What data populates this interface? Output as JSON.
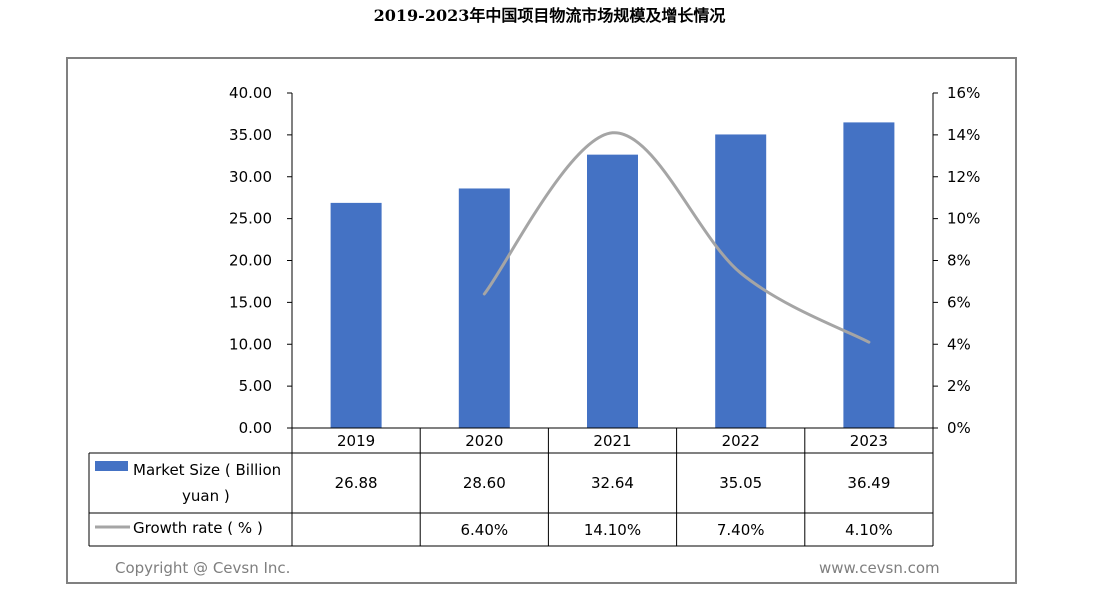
{
  "chart_data": {
    "type": "bar",
    "title": "2019-2023年中国项目物流市场规模及增长情况",
    "categories": [
      "2019",
      "2020",
      "2021",
      "2022",
      "2023"
    ],
    "series": [
      {
        "name": "Market Size ( Billion yuan )",
        "type": "bar",
        "axis": "left",
        "values": [
          26.88,
          28.6,
          32.64,
          35.05,
          36.49
        ],
        "labels": [
          "26.88",
          "28.60",
          "32.64",
          "35.05",
          "36.49"
        ],
        "color": "#4472c4"
      },
      {
        "name": "Growth rate ( % )",
        "type": "line",
        "axis": "right",
        "values": [
          null,
          6.4,
          14.1,
          7.4,
          4.1
        ],
        "labels": [
          "",
          "6.40%",
          "14.10%",
          "7.40%",
          "4.10%"
        ],
        "color": "#a5a5a5"
      }
    ],
    "ylim": [
      0,
      40
    ],
    "yticks": [
      "0.00",
      "5.00",
      "10.00",
      "15.00",
      "20.00",
      "25.00",
      "30.00",
      "35.00",
      "40.00"
    ],
    "y2lim": [
      0,
      16
    ],
    "y2ticks": [
      "0%",
      "2%",
      "4%",
      "6%",
      "8%",
      "10%",
      "12%",
      "14%",
      "16%"
    ],
    "grid": false,
    "legend": "data-table"
  },
  "table": {
    "row1_label_line1": "Market Size ( Billion",
    "row1_label_line2": "yuan )",
    "row2_label": "Growth rate ( % )"
  },
  "footer": {
    "copyright": "Copyright @ Cevsn Inc.",
    "website": "www.cevsn.com"
  }
}
